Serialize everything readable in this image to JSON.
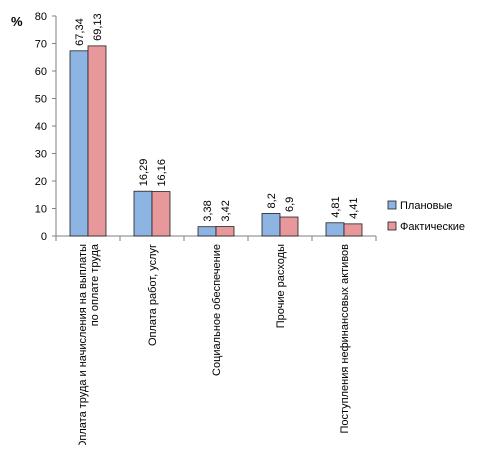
{
  "chart_data": {
    "type": "bar",
    "ylabel": "%",
    "ylim": [
      0,
      80
    ],
    "yticks": [
      0,
      10,
      20,
      30,
      40,
      50,
      60,
      70,
      80
    ],
    "categories": [
      "Оплата труда и начисления на выплаты по оплате труда",
      "Оплата работ, услуг",
      "Социальное обеспечение",
      "Прочие расходы",
      "Поступления нефинансовых активов"
    ],
    "series": [
      {
        "name": "Плановые",
        "color": "#8EB4E3",
        "values": [
          67.34,
          16.29,
          3.38,
          8.2,
          4.81
        ],
        "labels": [
          "67,34",
          "16,29",
          "3,38",
          "8,2",
          "4,81"
        ]
      },
      {
        "name": "Фактические",
        "color": "#E6989A",
        "values": [
          69.13,
          16.16,
          3.42,
          6.9,
          4.41
        ],
        "labels": [
          "69,13",
          "16,16",
          "3,42",
          "6,9",
          "4,41"
        ]
      }
    ],
    "legend_position": "right",
    "grid": false
  }
}
